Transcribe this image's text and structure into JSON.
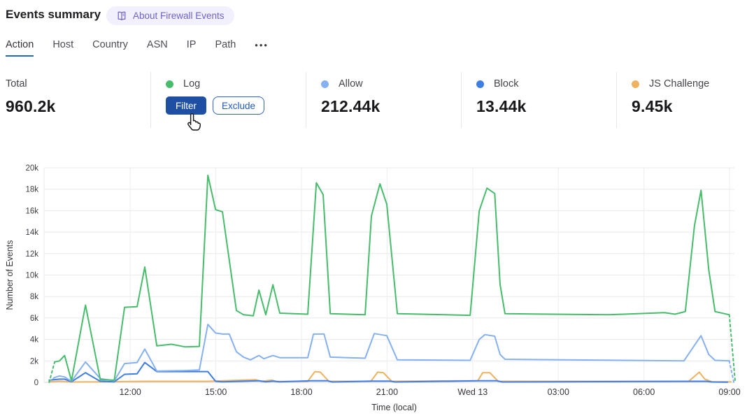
{
  "header": {
    "title": "Events summary",
    "about_label": "About Firewall Events"
  },
  "tabs": {
    "items": [
      {
        "label": "Action",
        "active": true
      },
      {
        "label": "Host",
        "active": false
      },
      {
        "label": "Country",
        "active": false
      },
      {
        "label": "ASN",
        "active": false
      },
      {
        "label": "IP",
        "active": false
      },
      {
        "label": "Path",
        "active": false
      }
    ],
    "more_icon": "•••"
  },
  "stats": {
    "total": {
      "label": "Total",
      "value": "960.2k"
    },
    "log": {
      "label": "Log",
      "color": "#47bd6b",
      "filter_label": "Filter",
      "exclude_label": "Exclude"
    },
    "allow": {
      "label": "Allow",
      "value": "212.44k",
      "color": "#85b1f3"
    },
    "block": {
      "label": "Block",
      "value": "13.44k",
      "color": "#3d7de4"
    },
    "js_challenge": {
      "label": "JS Challenge",
      "value": "9.45k",
      "color": "#efb35f"
    }
  },
  "chart_data": {
    "type": "line",
    "title": "",
    "xlabel": "Time (local)",
    "ylabel": "Number of Events",
    "x_unit": "hours since 09:00 Tue (local)",
    "y_unit": "thousands of events",
    "xlim": [
      -0.02,
      24.17
    ],
    "ylim": [
      0,
      20
    ],
    "grid": true,
    "legend_position": "none (legend shown in stat cards above)",
    "y_ticks": [
      {
        "v": 0,
        "label": "0"
      },
      {
        "v": 2,
        "label": "2k"
      },
      {
        "v": 4,
        "label": "4k"
      },
      {
        "v": 6,
        "label": "6k"
      },
      {
        "v": 8,
        "label": "8k"
      },
      {
        "v": 10,
        "label": "10k"
      },
      {
        "v": 12,
        "label": "12k"
      },
      {
        "v": 14,
        "label": "14k"
      },
      {
        "v": 16,
        "label": "16k"
      },
      {
        "v": 18,
        "label": "18k"
      },
      {
        "v": 20,
        "label": "20k"
      }
    ],
    "x_ticks": [
      {
        "t": 3,
        "label": "12:00"
      },
      {
        "t": 6,
        "label": "15:00"
      },
      {
        "t": 9,
        "label": "18:00"
      },
      {
        "t": 12,
        "label": "21:00"
      },
      {
        "t": 15,
        "label": "Wed 13"
      },
      {
        "t": 18,
        "label": "03:00"
      },
      {
        "t": 21,
        "label": "06:00"
      },
      {
        "t": 24,
        "label": "09:00"
      }
    ],
    "series": [
      {
        "name": "JS Challenge",
        "color": "#efb35f",
        "points": [
          [
            0.16,
            0.05
          ],
          [
            0.52,
            0.12
          ],
          [
            0.94,
            0.03
          ],
          [
            1.95,
            0.05
          ],
          [
            3.51,
            0.1
          ],
          [
            5.72,
            0.1
          ],
          [
            7.39,
            0.25
          ],
          [
            7.58,
            0.1
          ],
          [
            7.96,
            0.2
          ],
          [
            8.13,
            0.08
          ],
          [
            9.22,
            0.1
          ],
          [
            9.47,
            1.0
          ],
          [
            9.66,
            0.95
          ],
          [
            9.96,
            0.1
          ],
          [
            11.43,
            0.1
          ],
          [
            11.67,
            0.95
          ],
          [
            11.87,
            0.9
          ],
          [
            12.16,
            0.1
          ],
          [
            15.18,
            0.15
          ],
          [
            15.35,
            0.9
          ],
          [
            15.6,
            0.9
          ],
          [
            15.89,
            0.1
          ],
          [
            22.57,
            0.1
          ],
          [
            22.94,
            0.95
          ],
          [
            23.13,
            0.3
          ],
          [
            23.39,
            0.05
          ],
          [
            24.05,
            0.05
          ]
        ]
      },
      {
        "name": "Block",
        "color": "#3d7de4",
        "points": [
          [
            0.16,
            0.2
          ],
          [
            0.52,
            0.3
          ],
          [
            0.7,
            0.3
          ],
          [
            0.94,
            0.05
          ],
          [
            1.43,
            0.9
          ],
          [
            1.95,
            0.1
          ],
          [
            2.44,
            0.05
          ],
          [
            2.8,
            0.75
          ],
          [
            3.24,
            0.8
          ],
          [
            3.51,
            1.85
          ],
          [
            3.93,
            1.0
          ],
          [
            5.72,
            1.0
          ],
          [
            5.99,
            0.1
          ],
          [
            6.23,
            0.05
          ],
          [
            7.51,
            0.15
          ],
          [
            7.75,
            0.05
          ],
          [
            8.0,
            0.12
          ],
          [
            8.24,
            0.05
          ],
          [
            9.35,
            0.15
          ],
          [
            9.91,
            0.15
          ],
          [
            10.08,
            0.03
          ],
          [
            11.43,
            0.12
          ],
          [
            12.11,
            0.12
          ],
          [
            12.28,
            0.03
          ],
          [
            15.23,
            0.15
          ],
          [
            15.84,
            0.15
          ],
          [
            16.04,
            0.03
          ],
          [
            22.7,
            0.1
          ],
          [
            23.2,
            0.1
          ],
          [
            23.39,
            0.03
          ],
          [
            23.93,
            0.02
          ]
        ]
      },
      {
        "name": "Allow",
        "color": "#85b1f3",
        "dash_start": [
          [
            0.16,
            0.1
          ],
          [
            0.35,
            0.45
          ]
        ],
        "points": [
          [
            0.35,
            0.45
          ],
          [
            0.52,
            0.6
          ],
          [
            0.7,
            0.5
          ],
          [
            0.94,
            0.1
          ],
          [
            1.43,
            1.9
          ],
          [
            1.95,
            0.35
          ],
          [
            2.44,
            0.15
          ],
          [
            2.8,
            1.75
          ],
          [
            3.24,
            1.85
          ],
          [
            3.51,
            3.1
          ],
          [
            3.93,
            1.05
          ],
          [
            4.93,
            1.1
          ],
          [
            5.42,
            1.15
          ],
          [
            5.72,
            5.4
          ],
          [
            5.99,
            4.6
          ],
          [
            6.23,
            4.5
          ],
          [
            6.47,
            4.5
          ],
          [
            6.72,
            2.85
          ],
          [
            6.97,
            2.35
          ],
          [
            7.21,
            2.1
          ],
          [
            7.51,
            2.5
          ],
          [
            7.68,
            2.2
          ],
          [
            8.0,
            2.5
          ],
          [
            8.24,
            2.3
          ],
          [
            9.22,
            2.3
          ],
          [
            9.42,
            4.5
          ],
          [
            9.79,
            4.5
          ],
          [
            10.01,
            2.35
          ],
          [
            11.23,
            2.25
          ],
          [
            11.55,
            4.55
          ],
          [
            11.99,
            4.35
          ],
          [
            12.36,
            2.1
          ],
          [
            14.91,
            2.05
          ],
          [
            15.23,
            4.0
          ],
          [
            15.43,
            4.45
          ],
          [
            15.77,
            4.3
          ],
          [
            15.96,
            2.6
          ],
          [
            16.13,
            2.15
          ],
          [
            22.4,
            2.0
          ],
          [
            23.0,
            4.35
          ],
          [
            23.27,
            2.6
          ],
          [
            23.49,
            2.05
          ],
          [
            23.99,
            2.0
          ]
        ],
        "dash_end": [
          [
            23.99,
            2.0
          ],
          [
            24.15,
            0
          ]
        ]
      },
      {
        "name": "Log",
        "color": "#47bd6b",
        "dash_start": [
          [
            0.16,
            0
          ],
          [
            0.35,
            1.9
          ]
        ],
        "points": [
          [
            0.35,
            1.9
          ],
          [
            0.52,
            2.0
          ],
          [
            0.7,
            2.5
          ],
          [
            0.94,
            0.15
          ],
          [
            1.43,
            7.2
          ],
          [
            1.95,
            0.25
          ],
          [
            2.44,
            0.2
          ],
          [
            2.8,
            7.0
          ],
          [
            3.24,
            7.05
          ],
          [
            3.51,
            10.75
          ],
          [
            3.93,
            3.4
          ],
          [
            4.45,
            3.55
          ],
          [
            4.93,
            3.3
          ],
          [
            5.42,
            3.35
          ],
          [
            5.72,
            19.3
          ],
          [
            5.99,
            16.1
          ],
          [
            6.23,
            15.9
          ],
          [
            6.72,
            6.7
          ],
          [
            6.97,
            6.3
          ],
          [
            7.31,
            6.2
          ],
          [
            7.51,
            8.6
          ],
          [
            7.75,
            6.3
          ],
          [
            8.0,
            9.1
          ],
          [
            8.24,
            6.45
          ],
          [
            9.22,
            6.35
          ],
          [
            9.52,
            18.6
          ],
          [
            9.76,
            17.5
          ],
          [
            10.01,
            6.4
          ],
          [
            11.23,
            6.3
          ],
          [
            11.45,
            15.5
          ],
          [
            11.75,
            18.5
          ],
          [
            11.99,
            16.6
          ],
          [
            12.36,
            6.4
          ],
          [
            14.91,
            6.25
          ],
          [
            15.23,
            16.0
          ],
          [
            15.5,
            18.1
          ],
          [
            15.77,
            17.6
          ],
          [
            15.96,
            9.1
          ],
          [
            16.13,
            6.4
          ],
          [
            19.76,
            6.3
          ],
          [
            21.72,
            6.5
          ],
          [
            22.09,
            6.35
          ],
          [
            22.45,
            6.6
          ],
          [
            22.77,
            14.6
          ],
          [
            23.0,
            17.9
          ],
          [
            23.27,
            10.5
          ],
          [
            23.49,
            6.6
          ],
          [
            23.99,
            6.3
          ]
        ],
        "dash_end": [
          [
            23.99,
            6.3
          ],
          [
            24.2,
            0
          ]
        ]
      }
    ]
  }
}
